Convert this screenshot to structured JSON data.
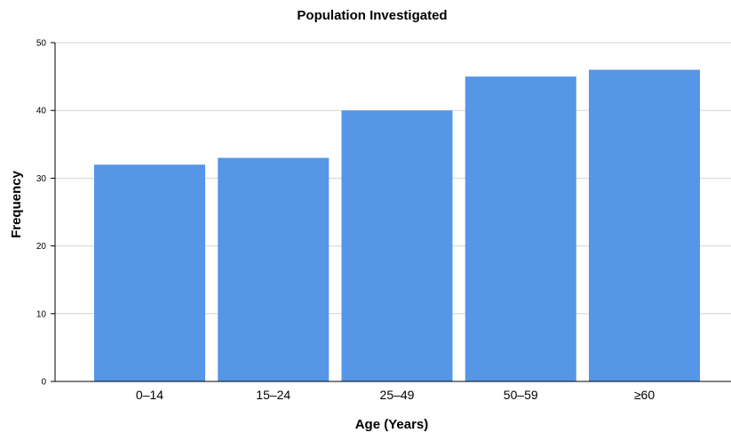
{
  "chart_data": {
    "type": "bar",
    "title": "Population Investigated",
    "xlabel": "Age (Years)",
    "ylabel": "Frequency",
    "categories": [
      "0–14",
      "15–24",
      "25–49",
      "50–59",
      "≥60"
    ],
    "values": [
      32,
      33,
      40,
      45,
      46
    ],
    "ylim": [
      0,
      50
    ],
    "yticks": [
      0,
      10,
      20,
      30,
      40,
      50
    ],
    "grid": true,
    "bar_color": "#5596e6",
    "grid_color": "#d4d4d4",
    "axis_color": "#000000"
  }
}
